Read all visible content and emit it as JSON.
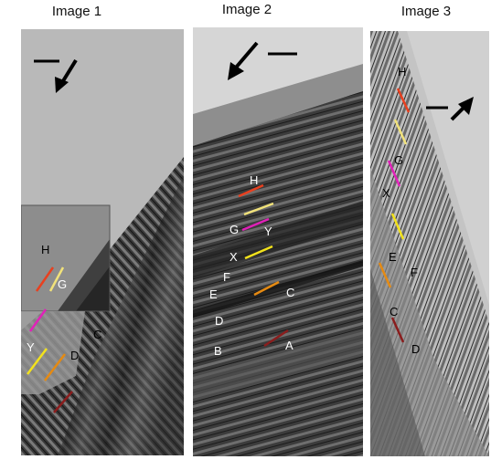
{
  "panels": [
    {
      "title": "Image 1",
      "labels": [
        "H",
        "G",
        "C",
        "Y",
        "D"
      ]
    },
    {
      "title": "Image 2",
      "labels": [
        "H",
        "G",
        "Y",
        "X",
        "F",
        "E",
        "C",
        "D",
        "B",
        "A"
      ]
    },
    {
      "title": "Image 3",
      "labels": [
        "H",
        "G",
        "X",
        "E",
        "F",
        "C",
        "D"
      ]
    }
  ],
  "marker_colors": {
    "H": "#e8401f",
    "G": "#f1e27a",
    "Y": "#e021b8",
    "X": "#f2e21c",
    "C": "#e58a12",
    "D": "#8a1d1d"
  }
}
